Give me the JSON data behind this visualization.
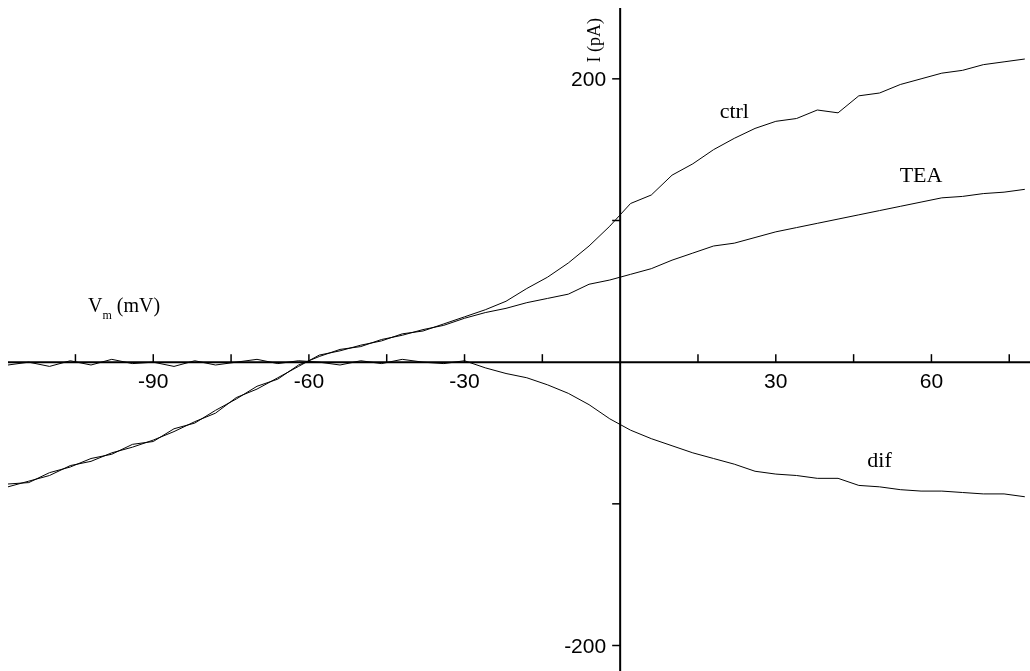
{
  "chart_data": {
    "type": "line",
    "xlabel": "V$_{m}$ (mV)",
    "ylabel": "I (pA)",
    "x": [
      -118,
      -114,
      -110,
      -106,
      -102,
      -98,
      -94,
      -90,
      -86,
      -82,
      -78,
      -74,
      -70,
      -66,
      -62,
      -58,
      -54,
      -50,
      -46,
      -42,
      -38,
      -34,
      -30,
      -26,
      -22,
      -18,
      -14,
      -10,
      -6,
      -2,
      2,
      6,
      10,
      14,
      18,
      22,
      26,
      30,
      34,
      38,
      42,
      46,
      50,
      54,
      58,
      62,
      66,
      70,
      74,
      78
    ],
    "series": [
      {
        "name": "ctrl",
        "color": "#000000",
        "values": [
          -88,
          -84,
          -80,
          -73,
          -70,
          -64,
          -60,
          -55,
          -49,
          -42,
          -36,
          -25,
          -19,
          -11,
          -3,
          5,
          8,
          12,
          15,
          20,
          22,
          27,
          32,
          37,
          43,
          52,
          60,
          70,
          82,
          96,
          112,
          118,
          132,
          140,
          150,
          158,
          165,
          170,
          172,
          178,
          176,
          188,
          190,
          196,
          200,
          204,
          206,
          210,
          212,
          214
        ]
      },
      {
        "name": "TEA",
        "color": "#000000",
        "values": [
          -86,
          -85,
          -78,
          -74,
          -68,
          -65,
          -58,
          -56,
          -47,
          -43,
          -34,
          -26,
          -17,
          -12,
          -2,
          4,
          9,
          11,
          16,
          19,
          23,
          26,
          31,
          35,
          38,
          42,
          45,
          48,
          55,
          58,
          62,
          66,
          72,
          77,
          82,
          84,
          88,
          92,
          95,
          98,
          101,
          104,
          107,
          110,
          113,
          116,
          117,
          119,
          120,
          122
        ]
      },
      {
        "name": "dif",
        "color": "#000000",
        "values": [
          -2,
          0,
          -3,
          1,
          -2,
          2,
          -1,
          0,
          -3,
          1,
          -2,
          0,
          2,
          -1,
          1,
          0,
          -2,
          1,
          -1,
          2,
          0,
          -1,
          1,
          -4,
          -8,
          -11,
          -16,
          -22,
          -30,
          -40,
          -48,
          -54,
          -59,
          -64,
          -68,
          -72,
          -77,
          -79,
          -80,
          -82,
          -82,
          -87,
          -88,
          -90,
          -91,
          -91,
          -92,
          -93,
          -93,
          -95
        ]
      }
    ],
    "xlim": [
      -118,
      79
    ],
    "xticks": [
      {
        "value": -105,
        "label": null
      },
      -90,
      {
        "value": -75,
        "label": null
      },
      -60,
      {
        "value": -45,
        "label": null
      },
      -30,
      {
        "value": -15,
        "label": null
      },
      {
        "value": 15,
        "label": null
      },
      30,
      {
        "value": 45,
        "label": null
      },
      60,
      {
        "value": 75,
        "label": null
      }
    ],
    "ylim": [
      -218,
      250
    ],
    "yticks": [
      -200,
      {
        "value": -100,
        "label": null
      },
      {
        "value": 100,
        "label": null
      },
      200
    ],
    "marker": "none",
    "line_style": "solid"
  }
}
